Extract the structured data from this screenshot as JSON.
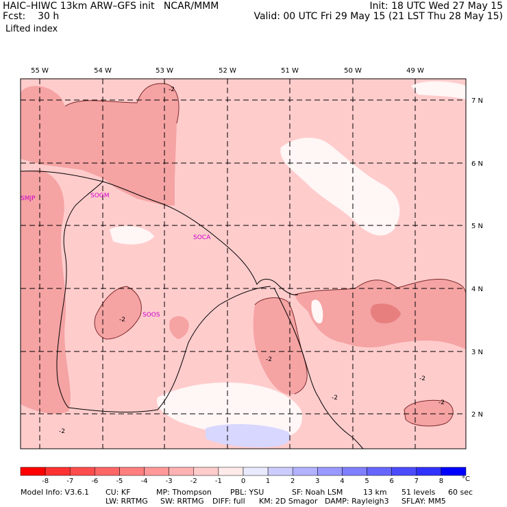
{
  "header": {
    "model_title": "HAIC–HIWC 13km ARW–GFS init",
    "organization": "NCAR/MMM",
    "init_time": "Init: 18 UTC Wed 27 May 15",
    "forecast_label": "Fcst:",
    "forecast_hours": "30 h",
    "valid_time": "Valid: 00 UTC Fri 29 May 15 (21 LST Thu 28 May 15)",
    "field_name": "Lifted index"
  },
  "map": {
    "longitude_labels": [
      "55 W",
      "54 W",
      "53 W",
      "52 W",
      "51 W",
      "50 W",
      "49 W"
    ],
    "latitude_labels": [
      "7 N",
      "6 N",
      "5 N",
      "4 N",
      "3 N",
      "2 N"
    ],
    "station_labels": [
      "SMJP",
      "SOGM",
      "SOCA",
      "SOOS"
    ],
    "contour_label": "-2",
    "colors": {
      "light_pink": "#ffcccc",
      "pink": "#f5a3a3",
      "red": "#e87f7f",
      "white": "#fff6f6",
      "light_blue": "#d7d7ff",
      "station": "#cc00cc"
    }
  },
  "colorbar": {
    "labels": [
      "-8",
      "-7",
      "-6",
      "-5",
      "-4",
      "-3",
      "-2",
      "-1",
      "0",
      "1",
      "2",
      "3",
      "4",
      "5",
      "6",
      "7",
      "8"
    ],
    "unit": "°C",
    "colors": [
      "#ff0000",
      "#ff3232",
      "#ff4c4c",
      "#ff6666",
      "#ff7f7f",
      "#ff9999",
      "#ffb2b2",
      "#ffcccc",
      "#ffeaea",
      "#eaeaff",
      "#ccccff",
      "#b2b2ff",
      "#9999ff",
      "#7f7fff",
      "#6666ff",
      "#4c4cff",
      "#3232ff",
      "#0000ff"
    ]
  },
  "footer": {
    "model_info": "Model Info: V3.6.1",
    "cu": "CU: KF",
    "mp": "MP: Thompson",
    "pbl": "PBL: YSU",
    "sf": "SF: Noah LSM",
    "res": "13 km",
    "levels": "51 levels",
    "dt": "60 sec",
    "lw": "LW: RRTMG",
    "sw": "SW: RRTMG",
    "diff": "DIFF: full",
    "km": "KM: 2D Smagor",
    "damp": "DAMP: Rayleigh3",
    "sflay": "SFLAY: MM5"
  }
}
